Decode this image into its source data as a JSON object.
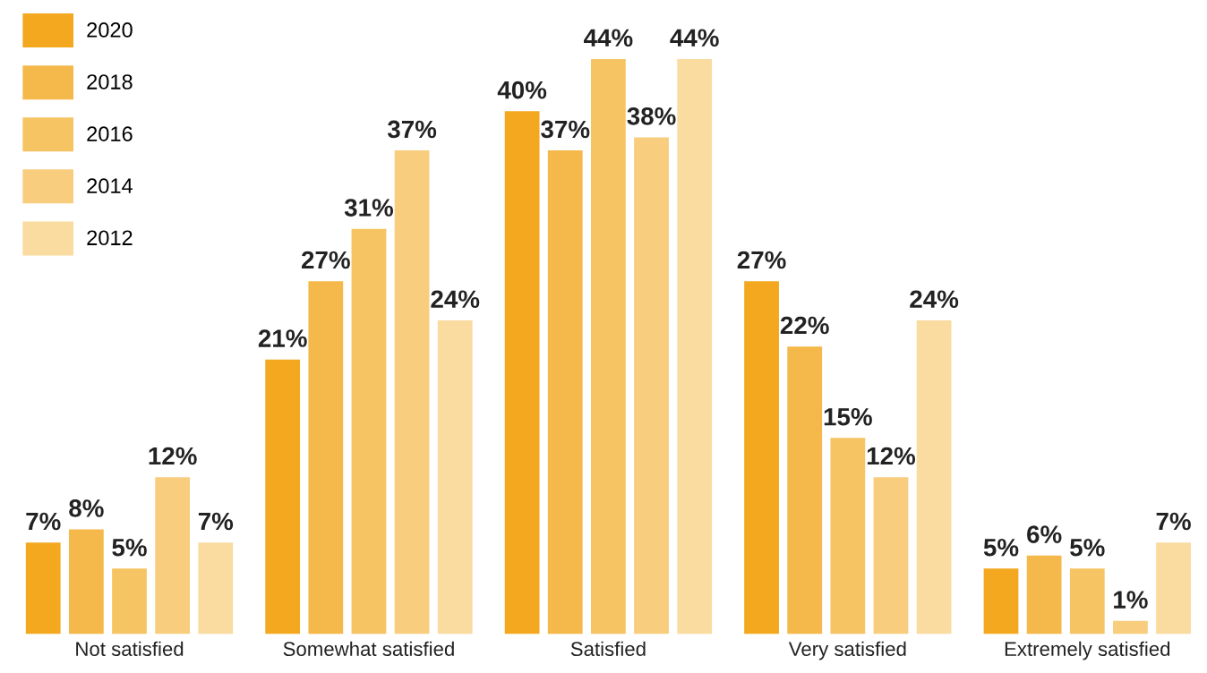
{
  "chart_data": {
    "type": "bar",
    "categories": [
      "Not satisfied",
      "Somewhat satisfied",
      "Satisfied",
      "Very satisfied",
      "Extremely satisfied"
    ],
    "series": [
      {
        "name": "2020",
        "color": "#f3a820",
        "values": [
          7,
          21,
          40,
          27,
          5
        ],
        "value_labels": [
          "7%",
          "21%",
          "40%",
          "27%",
          "5%"
        ]
      },
      {
        "name": "2018",
        "color": "#f5b84a",
        "values": [
          8,
          27,
          37,
          22,
          6
        ],
        "value_labels": [
          "8%",
          "27%",
          "37%",
          "22%",
          "6%"
        ]
      },
      {
        "name": "2016",
        "color": "#f6c462",
        "values": [
          5,
          31,
          44,
          15,
          5
        ],
        "value_labels": [
          "5%",
          "31%",
          "44%",
          "15%",
          "5%"
        ]
      },
      {
        "name": "2014",
        "color": "#f8cd7e",
        "values": [
          12,
          37,
          38,
          12,
          1
        ],
        "value_labels": [
          "12%",
          "37%",
          "38%",
          "12%",
          "1%"
        ]
      },
      {
        "name": "2012",
        "color": "#fadba0",
        "values": [
          7,
          24,
          44,
          24,
          7
        ],
        "value_labels": [
          "7%",
          "24%",
          "44%",
          "24%",
          "7%"
        ]
      }
    ],
    "legend": "top left",
    "grid": false
  }
}
